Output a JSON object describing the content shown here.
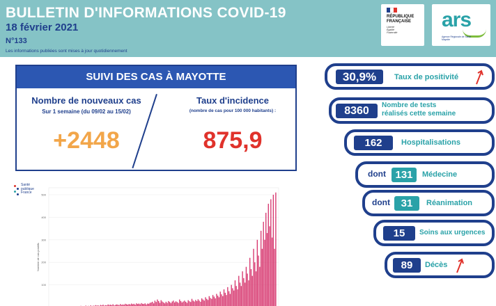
{
  "header": {
    "title": "BULLETIN D'INFORMATIONS COVID-19",
    "date": "18 février 2021",
    "number": "N°133",
    "note": "Les informations publiées sont mises à jour quotidiennement"
  },
  "logos": {
    "republique": {
      "line1": "RÉPUBLIQUE",
      "line2": "FRANÇAISE",
      "motto1": "Liberté",
      "motto2": "Égalité",
      "motto3": "Fraternité"
    },
    "ars": {
      "name": "ars",
      "subtitle": "Agence Régionale de Santé Mayotte"
    },
    "spf": {
      "line1": "Santé",
      "line2": "publique",
      "line3": "France"
    }
  },
  "cases": {
    "header": "SUIVI DES CAS À MAYOTTE",
    "new_cases_label": "Nombre de nouveaux cas",
    "new_cases_period": "Sur 1 semaine (du 09/02 au 15/02)",
    "new_cases_value": "+2448",
    "incidence_label": "Taux d'incidence",
    "incidence_sub": "(nombre de cas pour 100 000 habitants) :",
    "incidence_value": "875,9"
  },
  "indicators": {
    "positivity": {
      "value": "30,9%",
      "label": "Taux de positivité",
      "trend": "up-arrow-icon"
    },
    "tests": {
      "value": "8360",
      "label_line1": "Nombre de tests",
      "label_line2": "réalisés cette semaine"
    },
    "hospital": {
      "value": "162",
      "label": "Hospitalisations"
    },
    "medecine": {
      "prefix": "dont",
      "value": "131",
      "label": "Médecine"
    },
    "reanimation": {
      "prefix": "dont",
      "value": "31",
      "label": "Réanimation"
    },
    "urgences": {
      "value": "15",
      "label": "Soins aux urgences"
    },
    "deces": {
      "value": "89",
      "label": "Décès",
      "trend": "up-arrow-icon"
    }
  },
  "colors": {
    "navy": "#1f3f8c",
    "teal": "#2aa2a8",
    "header_bg": "#85c3c6",
    "orange": "#f2a64a",
    "red": "#e0322b",
    "bar": "#d6336c"
  },
  "chart_data": {
    "type": "bar",
    "title": "",
    "xlabel": "",
    "ylabel": "Nombre de cas positifs",
    "ylim": [
      0,
      500
    ],
    "yticks": [
      100,
      200,
      300,
      400,
      500
    ],
    "values": [
      2,
      1,
      3,
      1,
      2,
      4,
      2,
      3,
      1,
      2,
      5,
      3,
      4,
      2,
      6,
      3,
      4,
      2,
      3,
      5,
      4,
      6,
      3,
      5,
      7,
      4,
      6,
      5,
      8,
      6,
      7,
      5,
      9,
      6,
      8,
      7,
      10,
      8,
      9,
      7,
      11,
      9,
      12,
      8,
      10,
      9,
      13,
      11,
      12,
      10,
      14,
      9,
      11,
      13,
      12,
      10,
      15,
      11,
      13,
      12,
      16,
      14,
      12,
      15,
      13,
      17,
      14,
      16,
      12,
      18,
      15,
      17,
      14,
      19,
      16,
      15,
      18,
      13,
      17,
      16,
      20,
      22,
      25,
      18,
      30,
      24,
      35,
      28,
      20,
      32,
      26,
      22,
      18,
      25,
      20,
      28,
      24,
      19,
      26,
      30,
      22,
      27,
      24,
      20,
      35,
      28,
      22,
      26,
      30,
      25,
      20,
      32,
      27,
      24,
      38,
      30,
      26,
      33,
      28,
      36,
      30,
      25,
      40,
      35,
      30,
      45,
      38,
      33,
      50,
      42,
      38,
      55,
      48,
      40,
      60,
      52,
      45,
      70,
      58,
      50,
      80,
      65,
      55,
      90,
      72,
      60,
      100,
      85,
      75,
      120,
      95,
      80,
      140,
      110,
      95,
      160,
      130,
      110,
      180,
      150,
      120,
      220,
      170,
      140,
      260,
      200,
      160,
      300,
      230,
      180,
      340,
      260,
      380,
      300,
      420,
      330,
      460,
      360,
      480,
      310,
      500,
      260,
      510
    ]
  }
}
